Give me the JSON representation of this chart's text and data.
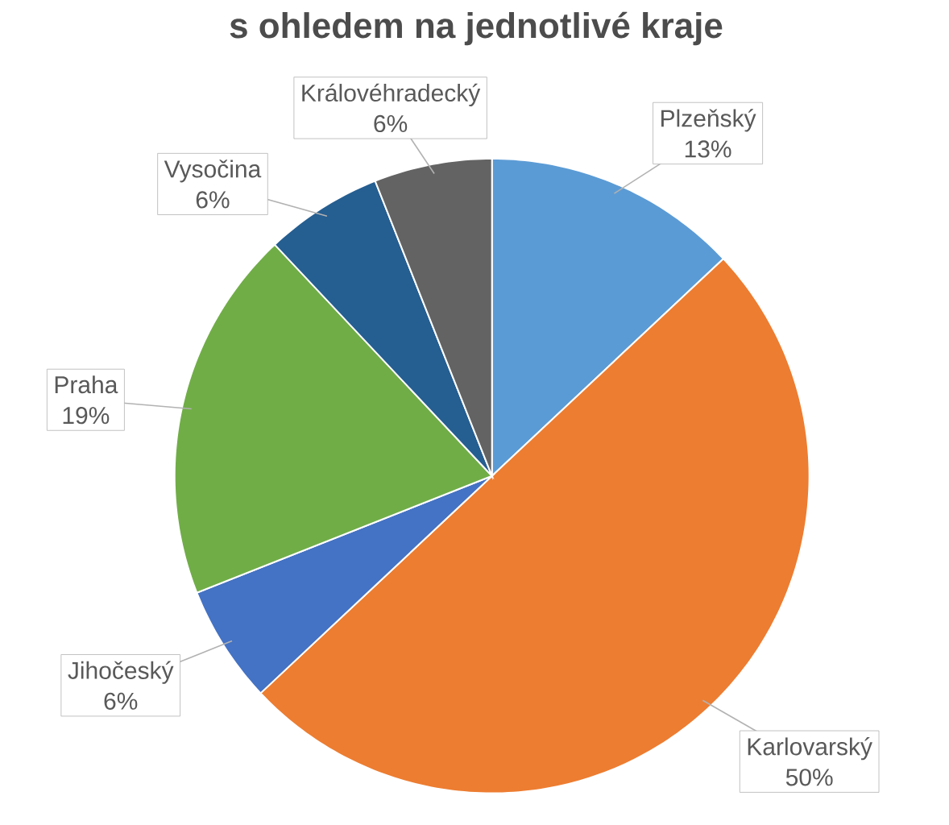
{
  "chart_data": {
    "type": "pie",
    "title": "s ohledem na jednotlivé kraje",
    "categories": [
      "Plzeňský",
      "Karlovarský",
      "Jihočeský",
      "Praha",
      "Vysočina",
      "Královéhradecký"
    ],
    "values": [
      13,
      50,
      6,
      19,
      6,
      6
    ],
    "value_labels": [
      "13%",
      "50%",
      "6%",
      "19%",
      "6%",
      "6%"
    ],
    "colors": [
      "#5b9bd5",
      "#ed7d31",
      "#4472c4",
      "#70ad47",
      "#255e91",
      "#636363"
    ]
  }
}
